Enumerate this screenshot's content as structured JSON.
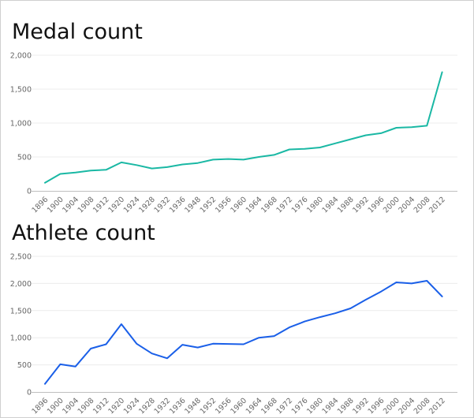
{
  "chart_data": [
    {
      "type": "line",
      "title": "Medal count",
      "color": "#1ab8a4",
      "categories": [
        "1896",
        "1900",
        "1904",
        "1908",
        "1912",
        "1920",
        "1924",
        "1928",
        "1932",
        "1936",
        "1948",
        "1952",
        "1956",
        "1960",
        "1964",
        "1968",
        "1972",
        "1976",
        "1980",
        "1984",
        "1988",
        "1992",
        "1996",
        "2000",
        "2004",
        "2008",
        "2012"
      ],
      "values": [
        120,
        250,
        270,
        300,
        310,
        420,
        380,
        330,
        350,
        390,
        410,
        460,
        470,
        460,
        500,
        530,
        610,
        620,
        640,
        700,
        760,
        820,
        850,
        930,
        940,
        960,
        1750
      ],
      "yticks": [
        "0",
        "500",
        "1,000",
        "1,500",
        "2,000"
      ],
      "ytick_values": [
        0,
        500,
        1000,
        1500,
        2000
      ],
      "ylim": [
        0,
        2000
      ],
      "grid": true
    },
    {
      "type": "line",
      "title": "Athlete count",
      "color": "#1a5fe8",
      "categories": [
        "1896",
        "1900",
        "1904",
        "1908",
        "1912",
        "1920",
        "1924",
        "1928",
        "1932",
        "1936",
        "1948",
        "1952",
        "1956",
        "1960",
        "1964",
        "1968",
        "1972",
        "1976",
        "1980",
        "1984",
        "1988",
        "1992",
        "1996",
        "2000",
        "2004",
        "2008",
        "2012"
      ],
      "values": [
        150,
        510,
        470,
        800,
        880,
        1250,
        890,
        710,
        620,
        870,
        820,
        890,
        885,
        880,
        1000,
        1030,
        1190,
        1300,
        1380,
        1450,
        1540,
        1700,
        1850,
        2020,
        2000,
        2050,
        1760
      ],
      "yticks": [
        "0",
        "500",
        "1,000",
        "1,500",
        "2,000",
        "2,500"
      ],
      "ytick_values": [
        0,
        500,
        1000,
        1500,
        2000,
        2500
      ],
      "ylim": [
        0,
        2500
      ],
      "grid": true
    }
  ]
}
